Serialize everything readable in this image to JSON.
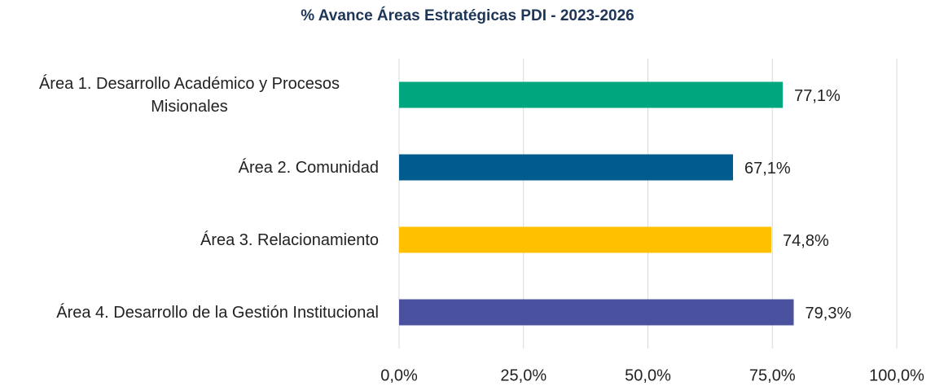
{
  "chart_data": {
    "type": "barh",
    "title": "% Avance Áreas Estratégicas PDI - 2023-2026",
    "categories": [
      "Área 1. Desarrollo Académico y Procesos Misionales",
      "Área 2. Comunidad",
      "Área 3. Relacionamiento",
      "Área 4. Desarrollo de la Gestión Institucional"
    ],
    "values": [
      77.1,
      67.1,
      74.8,
      79.3
    ],
    "value_labels": [
      "77,1%",
      "67,1%",
      "74,8%",
      "79,3%"
    ],
    "colors": [
      "#00a67e",
      "#005b8e",
      "#ffc000",
      "#4a519e"
    ],
    "xlim": [
      0,
      100
    ],
    "xticks": [
      {
        "value": 0,
        "label": "0,0%"
      },
      {
        "value": 25,
        "label": "25,0%"
      },
      {
        "value": 50,
        "label": "50,0%"
      },
      {
        "value": 75,
        "label": "75,0%"
      },
      {
        "value": 100,
        "label": "100,0%"
      }
    ],
    "grid": true
  }
}
